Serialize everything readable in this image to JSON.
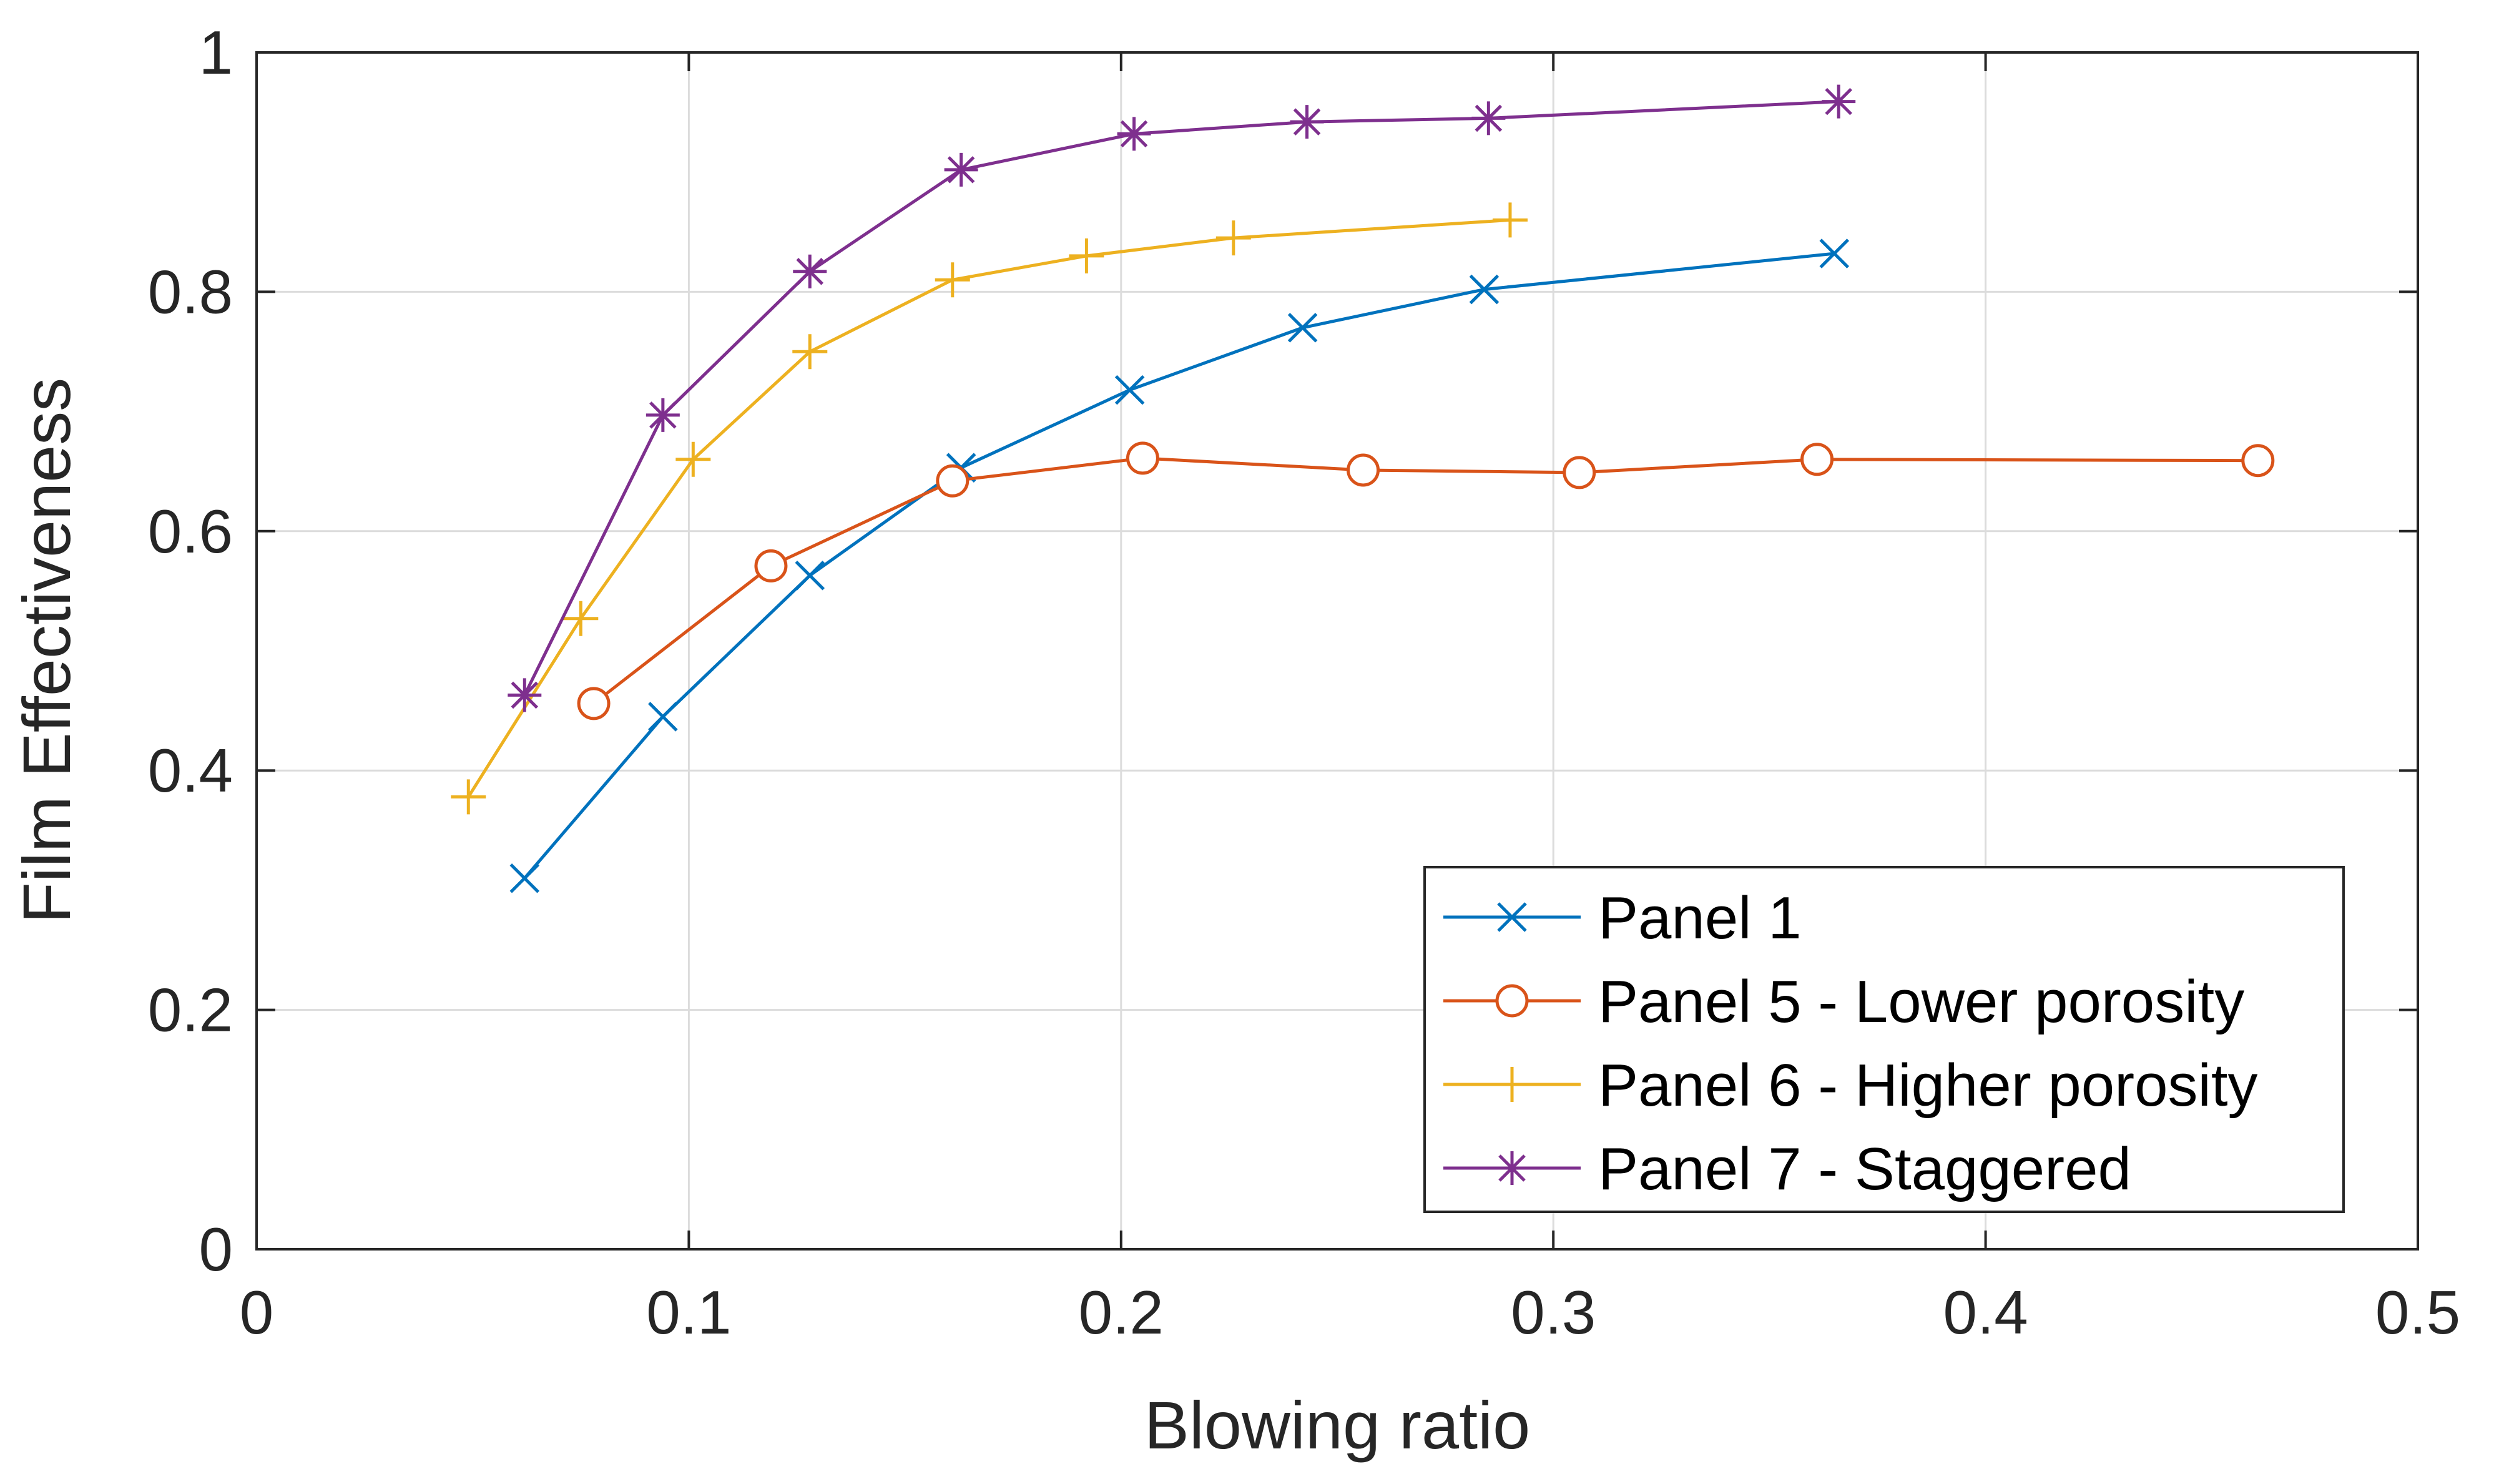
{
  "chart_data": {
    "type": "line",
    "title": "",
    "xlabel": "Blowing ratio",
    "ylabel": "Film Effectiveness",
    "xlim": [
      0,
      0.5
    ],
    "ylim": [
      0,
      1
    ],
    "xticks": [
      0,
      0.1,
      0.2,
      0.3,
      0.4,
      0.5
    ],
    "xtick_labels": [
      "0",
      "0.1",
      "0.2",
      "0.3",
      "0.4",
      "0.5"
    ],
    "yticks": [
      0,
      0.2,
      0.4,
      0.6,
      0.8,
      1
    ],
    "ytick_labels": [
      "0",
      "0.2",
      "0.4",
      "0.6",
      "0.8",
      "1"
    ],
    "grid": true,
    "legend_position": "bottom-right",
    "series": [
      {
        "name": "Panel 1",
        "color": "#0072BD",
        "marker": "x",
        "x": [
          0.062,
          0.094,
          0.128,
          0.163,
          0.202,
          0.242,
          0.284,
          0.365
        ],
        "y": [
          0.31,
          0.445,
          0.563,
          0.653,
          0.718,
          0.77,
          0.802,
          0.832
        ]
      },
      {
        "name": "Panel 5 - Lower porosity",
        "color": "#D95319",
        "marker": "o",
        "x": [
          0.078,
          0.119,
          0.161,
          0.205,
          0.256,
          0.306,
          0.361,
          0.463
        ],
        "y": [
          0.456,
          0.571,
          0.642,
          0.661,
          0.651,
          0.649,
          0.66,
          0.659
        ]
      },
      {
        "name": "Panel 6 - Higher porosity",
        "color": "#EDB120",
        "marker": "+",
        "x": [
          0.049,
          0.075,
          0.101,
          0.128,
          0.161,
          0.192,
          0.226,
          0.29
        ],
        "y": [
          0.378,
          0.527,
          0.66,
          0.75,
          0.81,
          0.83,
          0.845,
          0.86
        ]
      },
      {
        "name": "Panel 7 - Staggered",
        "color": "#7E2F8E",
        "marker": "*",
        "x": [
          0.062,
          0.094,
          0.128,
          0.163,
          0.203,
          0.243,
          0.285,
          0.366
        ],
        "y": [
          0.463,
          0.697,
          0.817,
          0.902,
          0.932,
          0.942,
          0.945,
          0.959
        ]
      }
    ]
  }
}
